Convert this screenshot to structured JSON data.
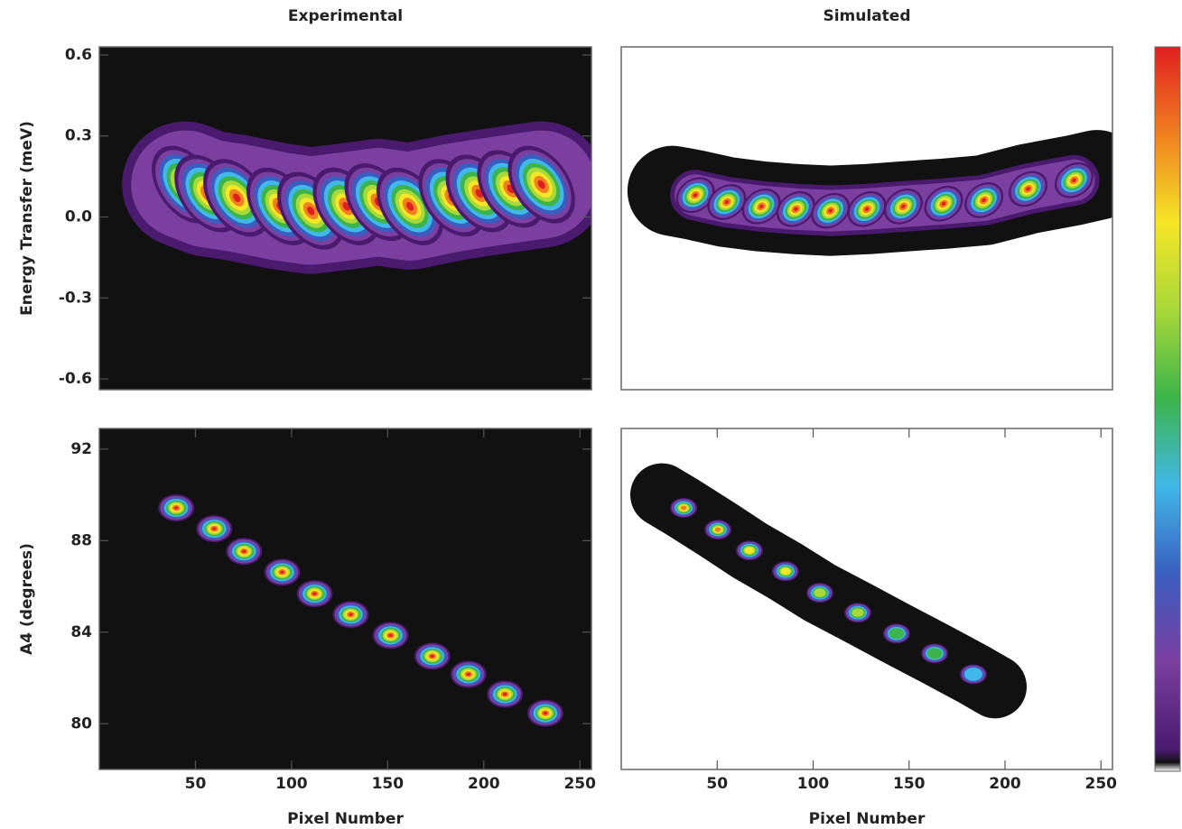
{
  "chart_data": [
    {
      "type": "heatmap",
      "title": "Experimental",
      "ylabel": "Energy Transfer (meV)",
      "background": "#111111",
      "xlim": [
        0,
        256
      ],
      "ylim": [
        -0.64,
        0.63
      ],
      "yticks": [
        -0.6,
        -0.3,
        {
          "value": 0,
          "label": "0.0"
        },
        0.3,
        0.6
      ],
      "x": [
        44.7,
        56.5,
        71.5,
        94,
        110,
        128.5,
        145,
        161.6,
        183.5,
        197.6,
        214,
        230
      ],
      "values": [
        0.12,
        0.087,
        0.071,
        0.039,
        0.023,
        0.039,
        0.055,
        0.039,
        0.071,
        0.087,
        0.104,
        0.12
      ]
    },
    {
      "type": "heatmap",
      "title": "Simulated",
      "background": "#ffffff",
      "band_color": "#111111",
      "xlim": [
        0,
        256
      ],
      "ylim": [
        -0.64,
        0.63
      ],
      "x": [
        38.6,
        55,
        73,
        91,
        109,
        128,
        147,
        168,
        189,
        212,
        236
      ],
      "values": [
        0.081,
        0.055,
        0.039,
        0.029,
        0.023,
        0.029,
        0.039,
        0.049,
        0.062,
        0.104,
        0.136
      ]
    },
    {
      "type": "heatmap",
      "xlabel": "Pixel Number",
      "ylabel": "A4 (degrees)",
      "background": "#111111",
      "xlim": [
        0,
        256
      ],
      "ylim": [
        78,
        92.9
      ],
      "xticks": [
        50,
        100,
        150,
        200,
        250
      ],
      "yticks": [
        80,
        84,
        88,
        92
      ],
      "x": [
        40,
        59.8,
        75.3,
        95.1,
        112,
        130.8,
        151.5,
        173.2,
        192,
        211,
        232
      ],
      "values": [
        89.43,
        88.52,
        87.53,
        86.62,
        85.68,
        84.77,
        83.86,
        82.95,
        82.16,
        81.29,
        80.46
      ]
    },
    {
      "type": "heatmap",
      "xlabel": "Pixel Number",
      "background": "#ffffff",
      "band_color": "#111111",
      "xlim": [
        0,
        256
      ],
      "ylim": [
        78,
        92.9
      ],
      "xticks": [
        50,
        100,
        150,
        200,
        250
      ],
      "x": [
        32.5,
        50.4,
        66.8,
        85.6,
        103.5,
        123.3,
        143.5,
        163.3,
        183.5
      ],
      "values": [
        89.43,
        88.48,
        87.57,
        86.66,
        85.72,
        84.85,
        83.94,
        83.07,
        82.16
      ]
    }
  ],
  "colorbar": {
    "colors": [
      "#ffffff",
      "#111111",
      "#4a1a6e",
      "#7b3fa0",
      "#3a5ec0",
      "#40b8e8",
      "#3cb44a",
      "#a8d83a",
      "#f5e626",
      "#f08020",
      "#e02020"
    ]
  }
}
